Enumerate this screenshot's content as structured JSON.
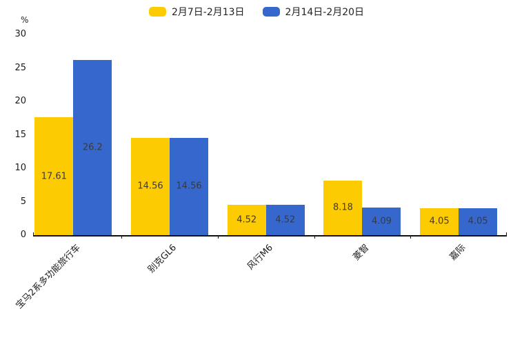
{
  "chart_data": {
    "type": "bar",
    "title": "",
    "categories": [
      "宝马2系多功能旅行车",
      "别克GL6",
      "风行M6",
      "菱智",
      "嘉际"
    ],
    "series": [
      {
        "name": "2月7日-2月13日",
        "color": "#FDCB02",
        "values": [
          17.61,
          14.56,
          4.52,
          8.18,
          4.05
        ]
      },
      {
        "name": "2月14日-2月20日",
        "color": "#3567CD",
        "values": [
          26.2,
          14.56,
          4.52,
          4.09,
          4.05
        ]
      }
    ],
    "ylabel": "%",
    "ylim": [
      0,
      30
    ],
    "yticks": [
      0,
      5,
      10,
      15,
      20,
      25,
      30
    ],
    "legend_position": "top",
    "grid": false,
    "value_labels": "inside-center",
    "axis_color": "#111111",
    "text_color": "#3a3a3a"
  }
}
